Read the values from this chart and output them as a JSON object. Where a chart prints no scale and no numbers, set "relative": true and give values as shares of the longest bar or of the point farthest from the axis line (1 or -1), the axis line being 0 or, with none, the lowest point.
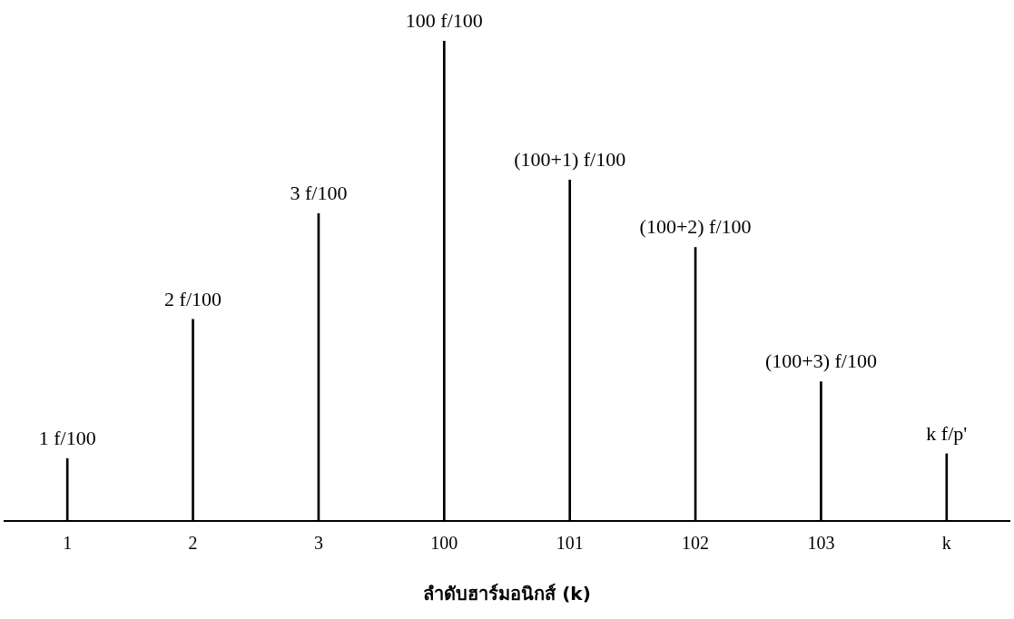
{
  "chart_data": {
    "type": "bar",
    "relative": true,
    "xlabel": "ลำดับฮาร์มอนิกส์ (k)",
    "categories": [
      "1",
      "2",
      "3",
      "100",
      "101",
      "102",
      "103",
      "k"
    ],
    "values": [
      0.13,
      0.42,
      0.64,
      1,
      0.71,
      0.57,
      0.29,
      0.14
    ],
    "annotations": [
      {
        "text": "1 f/100",
        "x": "1",
        "y": 0.13
      },
      {
        "text": "2 f/100",
        "x": "2",
        "y": 0.42
      },
      {
        "text": "3 f/100",
        "x": "3",
        "y": 0.64
      },
      {
        "text": "100 f/100",
        "x": "100",
        "y": 1
      },
      {
        "text": "(100+1) f/100",
        "x": "101",
        "y": 0.71
      },
      {
        "text": "(100+2) f/100",
        "x": "102",
        "y": 0.57
      },
      {
        "text": "(100+3) f/100",
        "x": "103",
        "y": 0.29
      },
      {
        "text": "k f/p'",
        "x": "k",
        "y": 0.14
      }
    ],
    "color": "#000000",
    "grid": false,
    "legend": false
  }
}
